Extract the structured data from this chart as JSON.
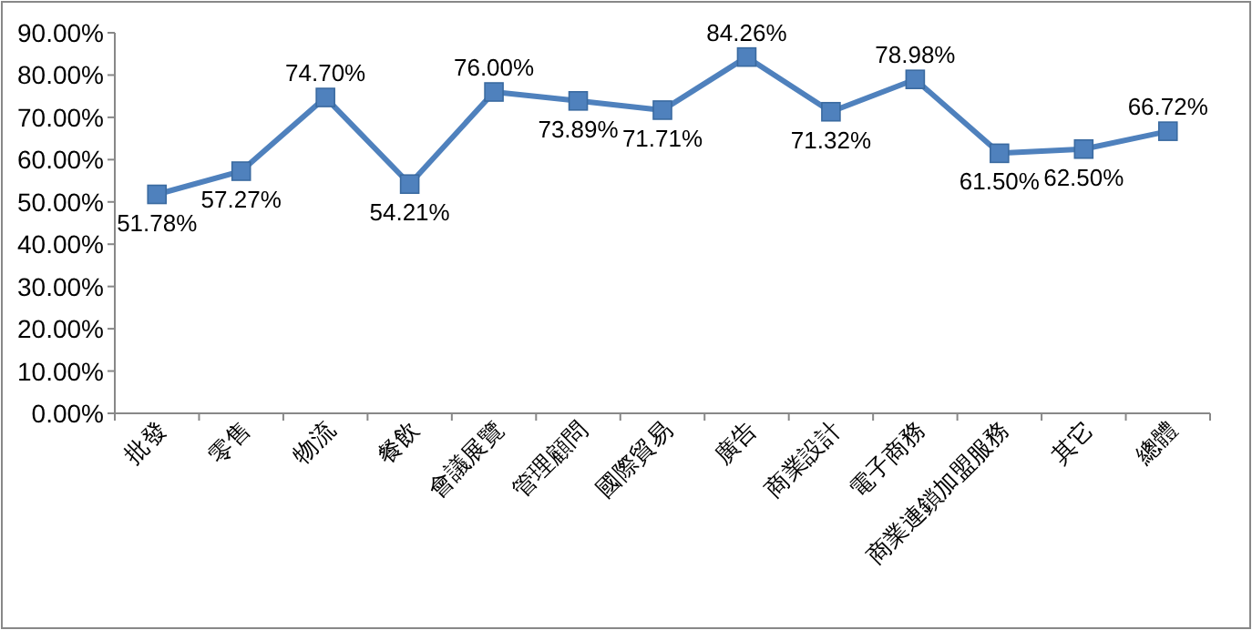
{
  "chart_data": {
    "type": "line",
    "categories": [
      "批發",
      "零售",
      "物流",
      "餐飲",
      "會議展覽",
      "管理顧問",
      "國際貿易",
      "廣告",
      "商業設計",
      "電子商務",
      "商業連鎖加盟服務",
      "其它",
      "總體"
    ],
    "series": [
      {
        "color": "#4f81bd",
        "values": [
          51.78,
          57.27,
          74.7,
          54.21,
          76.0,
          73.89,
          71.71,
          84.26,
          71.32,
          78.98,
          61.5,
          62.5,
          66.72
        ],
        "value_labels": [
          "51.78%",
          "57.27%",
          "74.70%",
          "54.21%",
          "76.00%",
          "73.89%",
          "71.71%",
          "84.26%",
          "71.32%",
          "78.98%",
          "61.50%",
          "62.50%",
          "66.72%"
        ]
      }
    ],
    "ylim": [
      0,
      90
    ],
    "yticks": [
      {
        "value": 0,
        "label": "0.00%"
      },
      {
        "value": 10,
        "label": "10.00%"
      },
      {
        "value": 20,
        "label": "20.00%"
      },
      {
        "value": 30,
        "label": "30.00%"
      },
      {
        "value": 40,
        "label": "40.00%"
      },
      {
        "value": 50,
        "label": "50.00%"
      },
      {
        "value": 60,
        "label": "60.00%"
      },
      {
        "value": 70,
        "label": "70.00%"
      },
      {
        "value": 80,
        "label": "80.00%"
      },
      {
        "value": 90,
        "label": "90.00%"
      }
    ],
    "marker": "square",
    "line_style": "solid",
    "grid": false
  }
}
